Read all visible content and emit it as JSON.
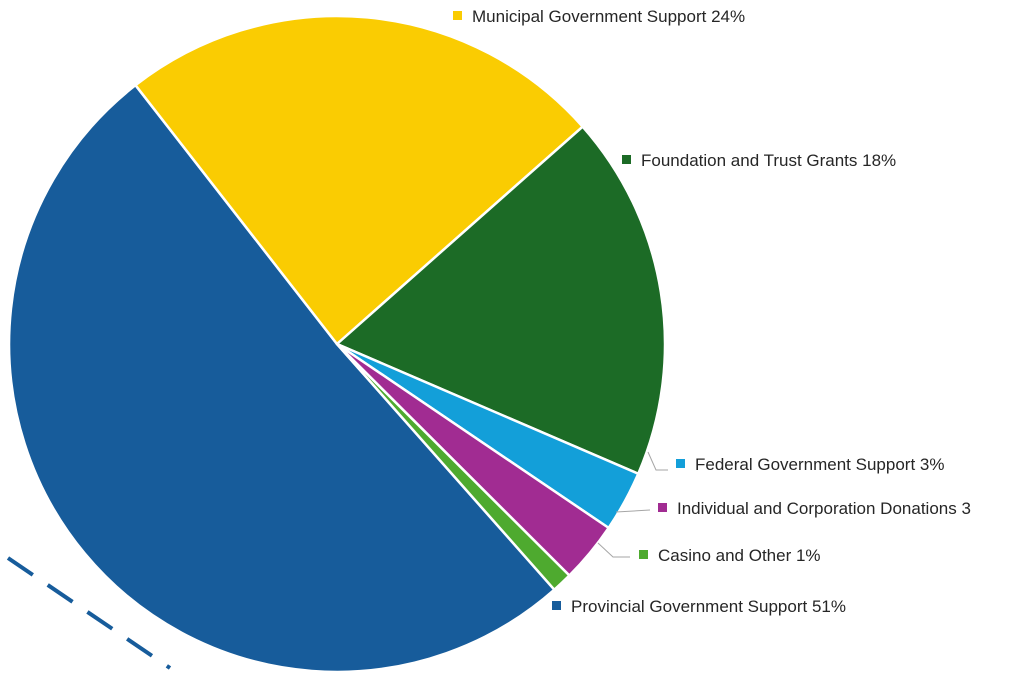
{
  "chart_data": {
    "type": "pie",
    "title": "",
    "slices": [
      {
        "label": "Provincial Government Support 51%",
        "value": 51,
        "color": "#175C9B",
        "legend_anchor": "Provincial"
      },
      {
        "label": "Municipal Government Support 24%",
        "value": 24,
        "color": "#FACC02",
        "legend_anchor": "Municipal"
      },
      {
        "label": "Foundation and Trust Grants 18%",
        "value": 18,
        "color": "#1C6B26",
        "legend_anchor": "Foundation"
      },
      {
        "label": "Federal Government Support 3%",
        "value": 3,
        "color": "#139FD9",
        "legend_anchor": "Federal"
      },
      {
        "label": "Individual and Corporation Donations 3",
        "value": 3,
        "color": "#A12C92",
        "legend_anchor": "Individual"
      },
      {
        "label": "Casino and Other 1%",
        "value": 1,
        "color": "#4EAA2F",
        "legend_anchor": "Casino"
      }
    ],
    "legend_placement": "around-pie"
  }
}
